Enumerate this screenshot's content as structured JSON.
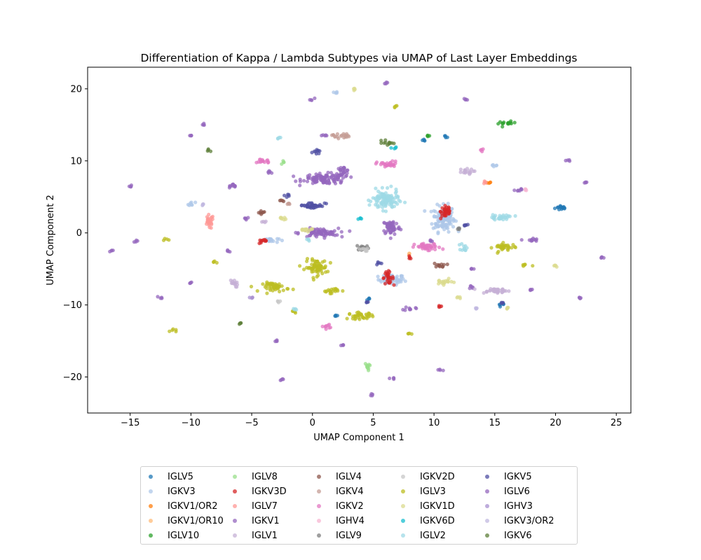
{
  "chart_data": {
    "type": "scatter",
    "title": "Differentiation of Kappa / Lambda Subtypes via UMAP of Last Layer Embeddings",
    "xlabel": "UMAP Component 1",
    "ylabel": "UMAP Component 2",
    "xlim": [
      -18.5,
      26.2
    ],
    "ylim": [
      -25,
      23
    ],
    "xticks": [
      -15,
      -10,
      -5,
      0,
      5,
      10,
      15,
      20,
      25
    ],
    "yticks": [
      -20,
      -10,
      0,
      10,
      20
    ],
    "xtick_labels": [
      "−15",
      "−10",
      "−5",
      "0",
      "5",
      "10",
      "15",
      "20",
      "25"
    ],
    "ytick_labels": [
      "−20",
      "−10",
      "0",
      "10",
      "20"
    ],
    "grid": false,
    "legend_placement": "below",
    "series": [
      {
        "name": "IGLV5",
        "color": "#1f77b4",
        "clusters": [
          [
            20.5,
            3.5,
            0.6,
            0.4
          ],
          [
            15.5,
            -10,
            0.4,
            0.2
          ],
          [
            11,
            13.5,
            0.2,
            0.3
          ],
          [
            9.2,
            12.8,
            0.2,
            0.2
          ],
          [
            4.6,
            -9.2,
            0.2,
            0.2
          ],
          [
            2,
            -11.5,
            0.2,
            0.2
          ]
        ]
      },
      {
        "name": "IGKV3",
        "color": "#aec7e8",
        "clusters": [
          [
            6.5,
            -6.5,
            1.2,
            0.8
          ],
          [
            10.8,
            2,
            1,
            2
          ],
          [
            -3.5,
            -1,
            0.8,
            0.4
          ],
          [
            -10,
            4,
            0.4,
            0.3
          ],
          [
            15,
            9.5,
            0.3,
            0.3
          ],
          [
            2,
            19.5,
            0.2,
            0.2
          ]
        ]
      },
      {
        "name": "IGKV1/OR2",
        "color": "#ff7f0e",
        "clusters": [
          [
            14.5,
            7,
            0.2,
            0.2
          ]
        ]
      },
      {
        "name": "IGKV1/OR10",
        "color": "#ffbb78",
        "clusters": [
          [
            8,
            -3,
            0.2,
            0.2
          ]
        ]
      },
      {
        "name": "IGLV10",
        "color": "#2ca02c",
        "clusters": [
          [
            16,
            15.2,
            0.8,
            0.3
          ],
          [
            9.5,
            13.5,
            0.2,
            0.2
          ]
        ]
      },
      {
        "name": "IGLV8",
        "color": "#98df8a",
        "clusters": [
          [
            4.6,
            -18.5,
            0.3,
            0.6
          ],
          [
            -2.5,
            9.8,
            0.2,
            0.2
          ]
        ]
      },
      {
        "name": "IGKV3D",
        "color": "#d62728",
        "clusters": [
          [
            6.2,
            -6.2,
            0.5,
            0.9
          ],
          [
            -4,
            -1.2,
            0.6,
            0.3
          ],
          [
            11,
            3,
            0.5,
            1.2
          ],
          [
            10.5,
            -10.2,
            0.2,
            0.2
          ],
          [
            8,
            -3.5,
            0.2,
            0.2
          ]
        ]
      },
      {
        "name": "IGLV7",
        "color": "#ff9896",
        "clusters": [
          [
            -8.5,
            1.5,
            0.4,
            1.1
          ],
          [
            14.2,
            7,
            0.2,
            0.2
          ]
        ]
      },
      {
        "name": "IGKV1",
        "color": "#9467bd",
        "clusters": [
          [
            1,
            7.5,
            2,
            0.8
          ],
          [
            2.5,
            8.5,
            0.6,
            0.8
          ],
          [
            0.5,
            0,
            1.8,
            0.7
          ],
          [
            6.5,
            0.8,
            0.8,
            1.2
          ],
          [
            -5.5,
            2,
            0.3,
            0.3
          ],
          [
            -6.5,
            6.5,
            0.6,
            0.3
          ],
          [
            1,
            13.5,
            0.3,
            0.3
          ],
          [
            18,
            -1,
            0.6,
            0.3
          ],
          [
            17,
            6,
            0.4,
            0.3
          ],
          [
            -3.5,
            8.5,
            0.3,
            0.3
          ],
          [
            8,
            -10.5,
            0.5,
            0.3
          ],
          [
            13.2,
            -7.5,
            0.3,
            0.3
          ]
        ]
      },
      {
        "name": "IGLV1",
        "color": "#c5b0d5",
        "clusters": [
          [
            15,
            -8,
            1.4,
            0.4
          ],
          [
            12.5,
            8.5,
            0.8,
            0.4
          ],
          [
            -6.5,
            -7,
            0.4,
            0.6
          ],
          [
            -4,
            1.5,
            0.2,
            0.2
          ]
        ]
      },
      {
        "name": "IGLV4",
        "color": "#8c564b",
        "clusters": [
          [
            10.5,
            -4.5,
            0.6,
            0.3
          ],
          [
            -4.2,
            2.8,
            0.4,
            0.3
          ],
          [
            -2.5,
            4.5,
            0.2,
            0.2
          ]
        ]
      },
      {
        "name": "IGKV4",
        "color": "#c49c94",
        "clusters": [
          [
            2.3,
            13.5,
            0.8,
            0.4
          ],
          [
            -2,
            4,
            0.2,
            0.2
          ]
        ]
      },
      {
        "name": "IGKV2",
        "color": "#e377c2",
        "clusters": [
          [
            6.2,
            9.5,
            1,
            0.5
          ],
          [
            9.5,
            -2,
            1.2,
            0.6
          ],
          [
            -4,
            10,
            0.6,
            0.4
          ],
          [
            1,
            -13,
            0.5,
            0.3
          ],
          [
            14,
            11.5,
            0.2,
            0.2
          ]
        ]
      },
      {
        "name": "IGHV4",
        "color": "#f7b6d2",
        "clusters": [
          [
            17.5,
            6,
            0.2,
            0.2
          ]
        ]
      },
      {
        "name": "IGLV9",
        "color": "#7f7f7f",
        "clusters": [
          [
            4.2,
            -2,
            0.6,
            0.4
          ],
          [
            12,
            0.5,
            0.2,
            0.2
          ]
        ]
      },
      {
        "name": "IGKV2D",
        "color": "#c7c7c7",
        "clusters": [
          [
            4.3,
            -2.3,
            0.5,
            0.3
          ],
          [
            -2.8,
            -9.5,
            0.2,
            0.2
          ]
        ]
      },
      {
        "name": "IGLV3",
        "color": "#bcbd22",
        "clusters": [
          [
            0.3,
            -4.8,
            1,
            1.2
          ],
          [
            -3,
            -7.5,
            1.2,
            0.7
          ],
          [
            4,
            -11.5,
            1.2,
            0.5
          ],
          [
            15.8,
            -2,
            1,
            0.6
          ],
          [
            1.5,
            -8,
            0.8,
            0.4
          ],
          [
            -11.5,
            -13.5,
            0.3,
            0.3
          ],
          [
            6.8,
            17.5,
            0.2,
            0.3
          ],
          [
            8,
            -14,
            0.3,
            0.2
          ],
          [
            -12,
            -1,
            0.3,
            0.2
          ],
          [
            -8,
            -4,
            0.2,
            0.2
          ],
          [
            17.5,
            -4.5,
            0.5,
            0.2
          ],
          [
            -1.5,
            -11,
            0.3,
            0.3
          ]
        ]
      },
      {
        "name": "IGKV1D",
        "color": "#dbdb8d",
        "clusters": [
          [
            10.8,
            -6.8,
            0.8,
            0.4
          ],
          [
            -2.5,
            2,
            0.4,
            0.3
          ],
          [
            -0.5,
            0.5,
            0.8,
            0.3
          ],
          [
            12,
            -9,
            0.2,
            0.2
          ],
          [
            3.5,
            19.8,
            0.2,
            0.2
          ],
          [
            16,
            -10.5,
            0.2,
            0.2
          ],
          [
            20,
            -4.5,
            0.2,
            0.2
          ]
        ]
      },
      {
        "name": "IGKV6D",
        "color": "#17becf",
        "clusters": [
          [
            6.8,
            11.8,
            0.3,
            0.2
          ],
          [
            4,
            2,
            0.2,
            0.3
          ]
        ]
      },
      {
        "name": "IGLV2",
        "color": "#9edae5",
        "clusters": [
          [
            6,
            4.5,
            1.2,
            1.5
          ],
          [
            15.5,
            2.2,
            1.2,
            0.4
          ],
          [
            12.5,
            -2,
            0.3,
            0.6
          ],
          [
            -2.8,
            13.2,
            0.2,
            0.2
          ],
          [
            -0.3,
            -1,
            0.2,
            0.2
          ],
          [
            -1.5,
            -10.5,
            0.2,
            0.2
          ]
        ]
      },
      {
        "name": "IGKV5",
        "color": "#4f4fa3",
        "clusters": [
          [
            0,
            3.8,
            1.2,
            0.5
          ],
          [
            0.3,
            11.5,
            0.3,
            0.5
          ],
          [
            4.5,
            -9.7,
            0.2,
            0.2
          ],
          [
            12.5,
            1,
            0.3,
            0.3
          ],
          [
            15.5,
            -9.8,
            0.2,
            0.2
          ],
          [
            -2,
            5.2,
            0.3,
            0.3
          ],
          [
            5.3,
            -4.2,
            0.3,
            0.3
          ]
        ]
      },
      {
        "name": "IGLV6",
        "color": "#9467bd",
        "clusters": [
          [
            -10,
            13.5,
            0.2,
            0.2
          ],
          [
            -15,
            6.5,
            0.2,
            0.2
          ],
          [
            -9,
            15,
            0.2,
            0.2
          ],
          [
            10.5,
            -19,
            0.2,
            0.2
          ],
          [
            -2.5,
            -20.3,
            0.2,
            0.2
          ],
          [
            6.5,
            -20.3,
            0.3,
            0.2
          ],
          [
            4.8,
            -22.5,
            0.2,
            0.2
          ],
          [
            23.8,
            -3.5,
            0.2,
            0.2
          ],
          [
            22.5,
            7,
            0.2,
            0.2
          ],
          [
            -16.5,
            -2.5,
            0.2,
            0.2
          ],
          [
            12.5,
            18.5,
            0.2,
            0.2
          ],
          [
            6,
            20.8,
            0.2,
            0.2
          ],
          [
            0,
            18.5,
            0.2,
            0.2
          ],
          [
            -14.5,
            -1.2,
            0.2,
            0.2
          ],
          [
            21,
            10,
            0.2,
            0.2
          ],
          [
            22,
            -9,
            0.2,
            0.2
          ],
          [
            -10,
            -7,
            0.2,
            0.2
          ],
          [
            -12.5,
            -9,
            0.2,
            0.2
          ],
          [
            9.8,
            -1,
            0.2,
            0.3
          ],
          [
            -7,
            -2.5,
            0.3,
            0.2
          ],
          [
            13,
            -5,
            0.3,
            0.2
          ],
          [
            18,
            -8,
            0.3,
            0.2
          ],
          [
            -3,
            -15,
            0.2,
            0.2
          ],
          [
            2.5,
            -15.5,
            0.2,
            0.2
          ]
        ]
      },
      {
        "name": "IGHV3",
        "color": "#a890d0",
        "clusters": [
          [
            -5,
            -9,
            0.2,
            0.2
          ]
        ]
      },
      {
        "name": "IGKV3/OR2",
        "color": "#c0b8e0",
        "clusters": [
          [
            13.5,
            -10.5,
            0.2,
            0.2
          ],
          [
            -9,
            4,
            0.2,
            0.2
          ]
        ]
      },
      {
        "name": "IGKV6",
        "color": "#5e7f3a",
        "clusters": [
          [
            6.2,
            12.5,
            0.5,
            0.4
          ],
          [
            -8.5,
            11.5,
            0.2,
            0.2
          ],
          [
            -6,
            -12.5,
            0.2,
            0.2
          ]
        ]
      }
    ]
  }
}
